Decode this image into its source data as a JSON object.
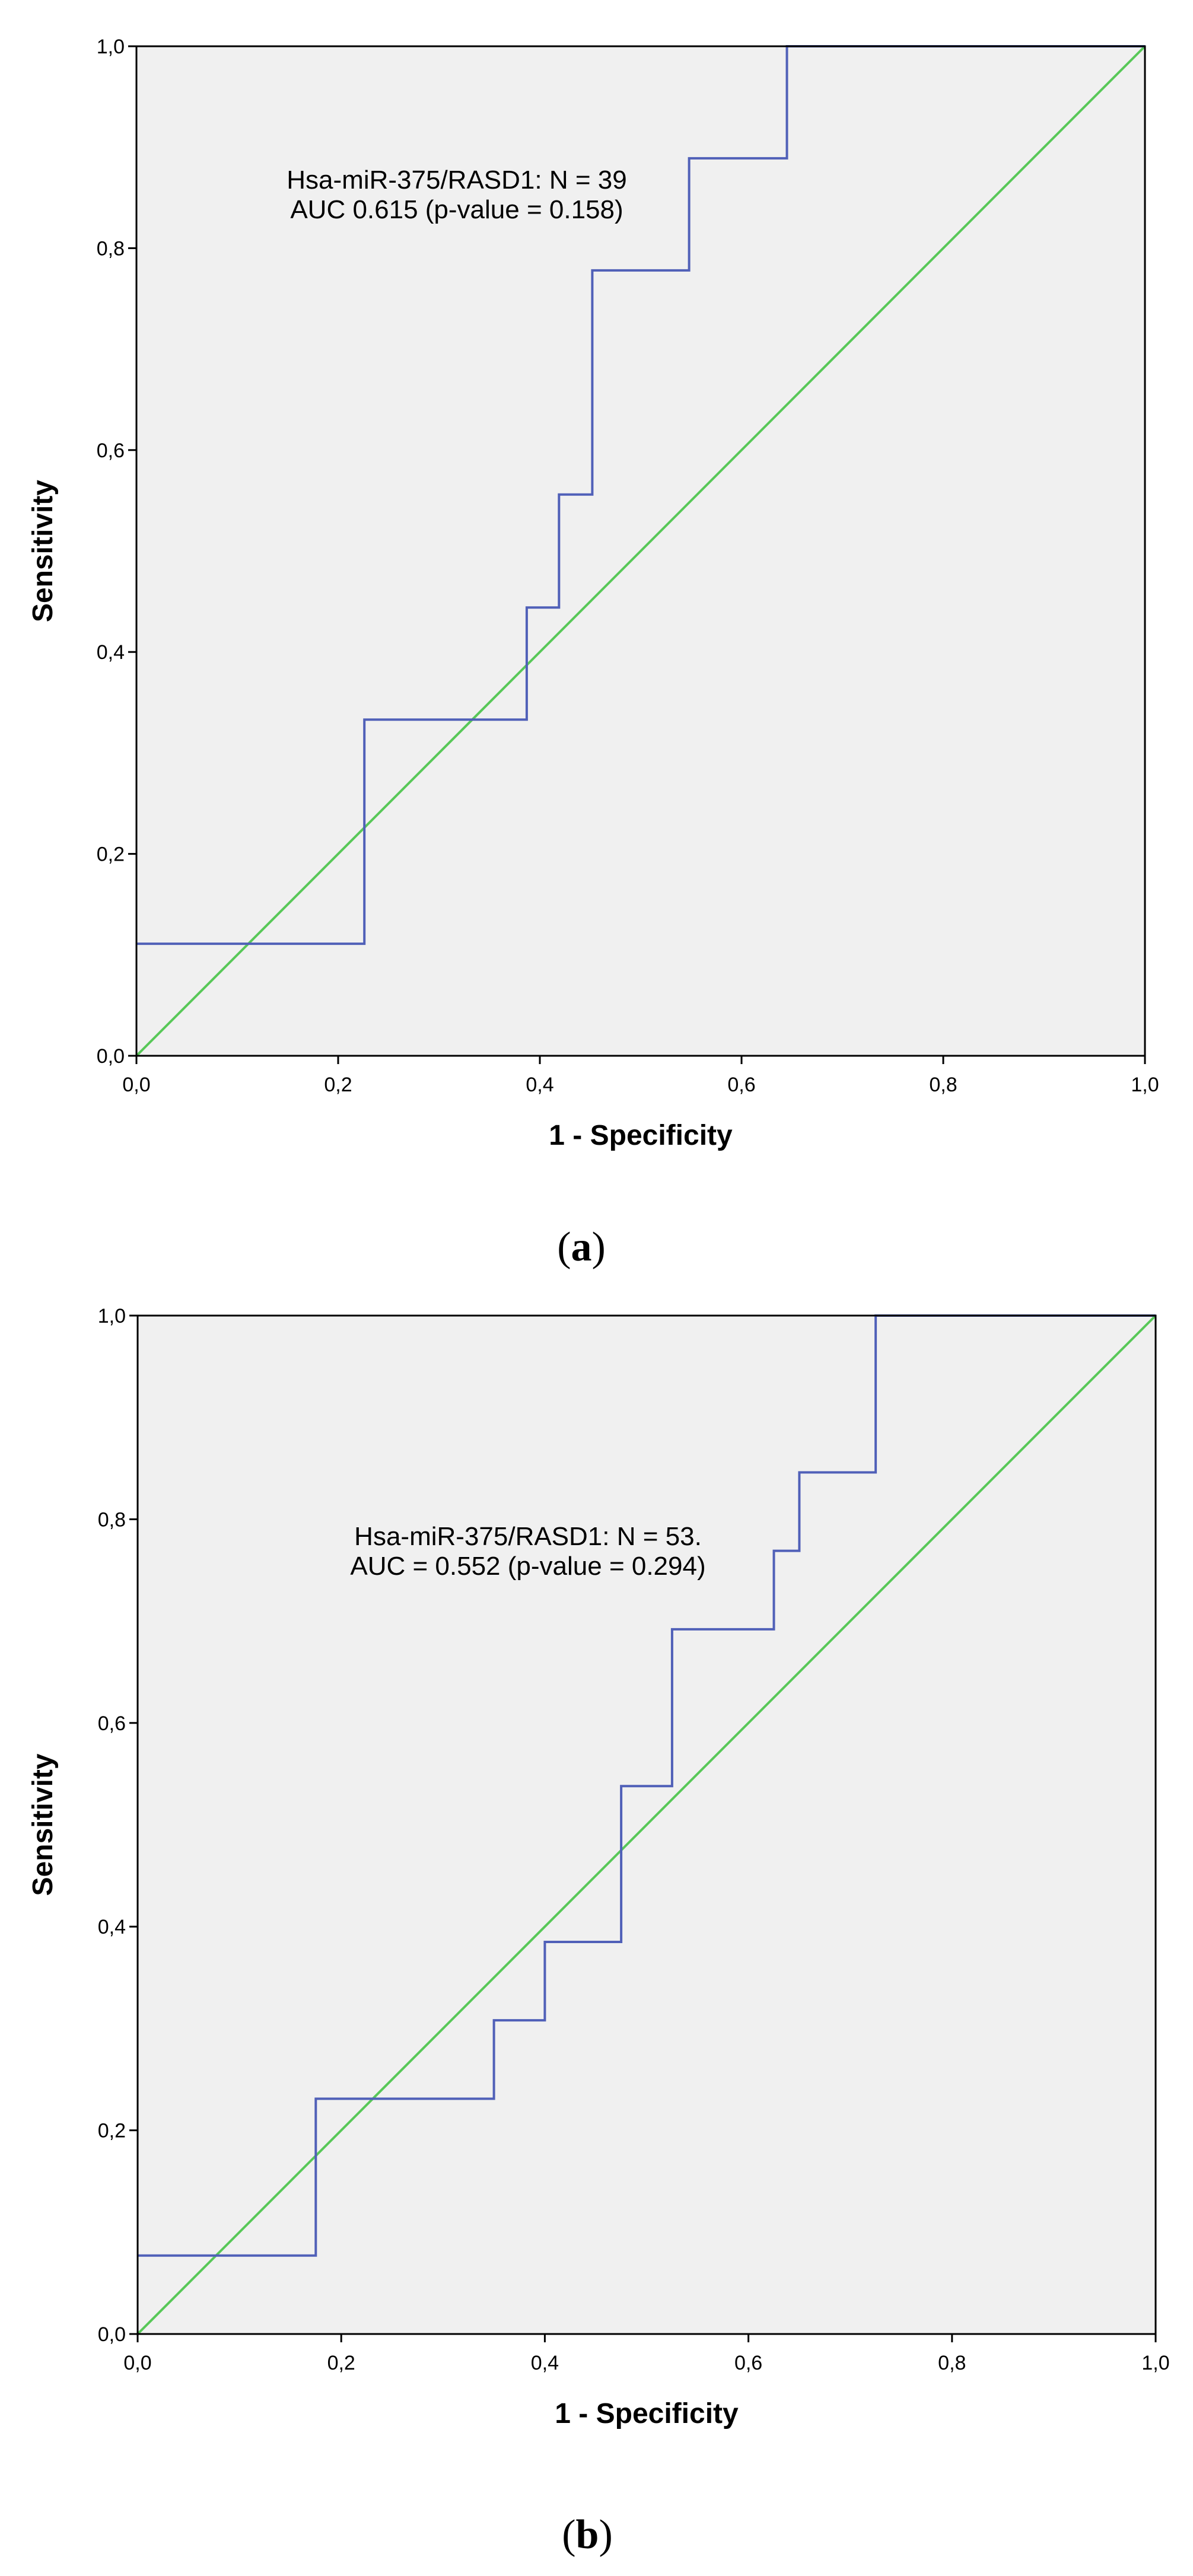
{
  "figure": {
    "colors": {
      "background": "#f0f0f0",
      "roc_line": "#5060b8",
      "reference_line": "#58c858",
      "axes": "#000000"
    }
  },
  "chart_data": [
    {
      "type": "line",
      "panel": "(a)",
      "panel_letter": "a",
      "xlabel": "1 - Specificity",
      "ylabel": "Sensitivity",
      "xlim": [
        0,
        1
      ],
      "ylim": [
        0,
        1
      ],
      "x_tick_labels": [
        "0,0",
        "0,2",
        "0,4",
        "0,6",
        "0,8",
        "1,0"
      ],
      "y_tick_labels": [
        "0,0",
        "0,2",
        "0,4",
        "0,6",
        "0,8",
        "1,0"
      ],
      "annotation": [
        "Hsa-miR-375/RASD1: N = 39",
        "AUC 0.615 (p-value = 0.158)"
      ],
      "grid": false,
      "series": [
        {
          "role": "roc",
          "x": [
            0,
            0.226,
            0.226,
            0.387,
            0.387,
            0.419,
            0.419,
            0.452,
            0.452,
            0.548,
            0.548,
            0.645,
            0.645,
            1.0
          ],
          "y": [
            0.111,
            0.111,
            0.333,
            0.333,
            0.444,
            0.444,
            0.556,
            0.556,
            0.778,
            0.778,
            0.889,
            0.889,
            1.0,
            1.0
          ]
        },
        {
          "role": "reference",
          "x": [
            0,
            1
          ],
          "y": [
            0,
            1
          ]
        }
      ]
    },
    {
      "type": "line",
      "panel": "(b)",
      "panel_letter": "b",
      "xlabel": "1 - Specificity",
      "ylabel": "Sensitivity",
      "xlim": [
        0,
        1
      ],
      "ylim": [
        0,
        1
      ],
      "x_tick_labels": [
        "0,0",
        "0,2",
        "0,4",
        "0,6",
        "0,8",
        "1,0"
      ],
      "y_tick_labels": [
        "0,0",
        "0,2",
        "0,4",
        "0,6",
        "0,8",
        "1,0"
      ],
      "annotation": [
        "Hsa-miR-375/RASD1: N = 53.",
        "AUC = 0.552 (p-value = 0.294)"
      ],
      "grid": false,
      "series": [
        {
          "role": "roc",
          "x": [
            0,
            0.175,
            0.175,
            0.35,
            0.35,
            0.4,
            0.4,
            0.475,
            0.475,
            0.525,
            0.525,
            0.625,
            0.625,
            0.65,
            0.65,
            0.725,
            0.725,
            1.0
          ],
          "y": [
            0.077,
            0.077,
            0.231,
            0.231,
            0.308,
            0.308,
            0.385,
            0.385,
            0.538,
            0.538,
            0.692,
            0.692,
            0.769,
            0.769,
            0.846,
            0.846,
            1.0,
            1.0
          ]
        },
        {
          "role": "reference",
          "x": [
            0,
            1
          ],
          "y": [
            0,
            1
          ]
        }
      ]
    }
  ]
}
